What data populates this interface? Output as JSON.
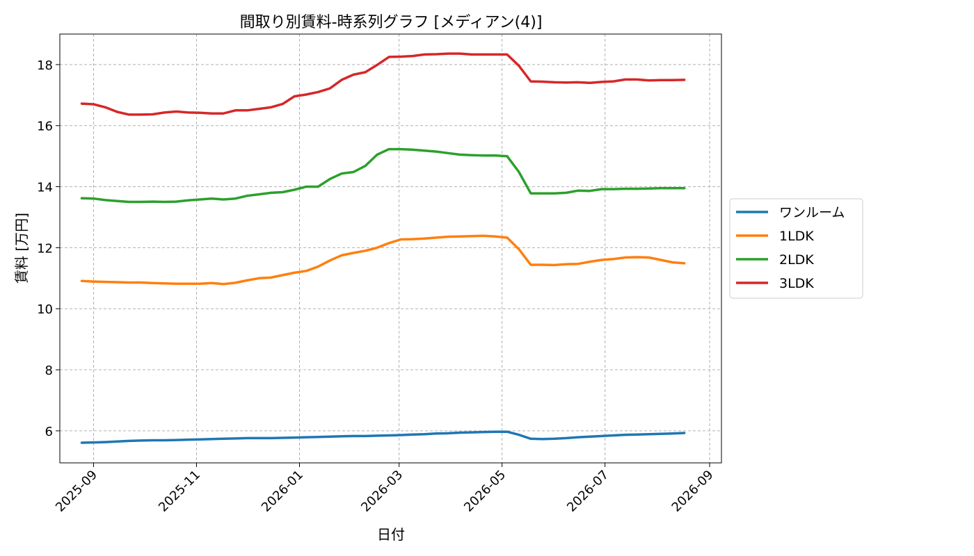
{
  "chart_data": {
    "type": "line",
    "title": "間取り別賃料-時系列グラフ [メディアン(4)]",
    "xlabel": "日付",
    "ylabel": "賃料 [万円]",
    "xlim": [
      "2025-08-12",
      "2026-09-08"
    ],
    "ylim": [
      4.95,
      19.0
    ],
    "yticks": [
      6,
      8,
      10,
      12,
      14,
      16,
      18
    ],
    "xticks": [
      "2025-09",
      "2025-11",
      "2026-01",
      "2026-03",
      "2026-05",
      "2026-07",
      "2026-09"
    ],
    "grid": true,
    "legend_position": "center-right",
    "x": [
      "2025-08-25",
      "2025-09-01",
      "2025-09-08",
      "2025-09-15",
      "2025-09-22",
      "2025-09-29",
      "2025-10-06",
      "2025-10-13",
      "2025-10-20",
      "2025-10-27",
      "2025-11-03",
      "2025-11-10",
      "2025-11-17",
      "2025-11-24",
      "2025-12-01",
      "2025-12-08",
      "2025-12-15",
      "2025-12-22",
      "2025-12-29",
      "2026-01-05",
      "2026-01-12",
      "2026-01-19",
      "2026-01-26",
      "2026-02-02",
      "2026-02-09",
      "2026-02-16",
      "2026-02-23",
      "2026-03-02",
      "2026-03-09",
      "2026-03-16",
      "2026-03-23",
      "2026-03-30",
      "2026-04-06",
      "2026-04-13",
      "2026-04-20",
      "2026-04-27",
      "2026-05-04",
      "2026-05-11",
      "2026-05-18",
      "2026-05-25",
      "2026-06-01",
      "2026-06-08",
      "2026-06-15",
      "2026-06-22",
      "2026-06-29",
      "2026-07-06",
      "2026-07-13",
      "2026-07-20",
      "2026-07-27",
      "2026-08-03",
      "2026-08-10",
      "2026-08-17"
    ],
    "series": [
      {
        "name": "ワンルーム",
        "color": "#1f77b4",
        "values": [
          5.61,
          5.62,
          5.63,
          5.65,
          5.67,
          5.68,
          5.69,
          5.69,
          5.7,
          5.71,
          5.72,
          5.73,
          5.74,
          5.75,
          5.76,
          5.76,
          5.76,
          5.77,
          5.78,
          5.79,
          5.8,
          5.81,
          5.82,
          5.83,
          5.83,
          5.84,
          5.85,
          5.86,
          5.88,
          5.89,
          5.91,
          5.92,
          5.94,
          5.95,
          5.96,
          5.97,
          5.97,
          5.87,
          5.74,
          5.73,
          5.74,
          5.76,
          5.79,
          5.81,
          5.83,
          5.85,
          5.87,
          5.88,
          5.89,
          5.9,
          5.91,
          5.93
        ]
      },
      {
        "name": "1LDK",
        "color": "#ff7f0e",
        "values": [
          10.91,
          10.89,
          10.88,
          10.87,
          10.86,
          10.86,
          10.84,
          10.83,
          10.82,
          10.82,
          10.82,
          10.84,
          10.81,
          10.85,
          10.93,
          11.0,
          11.02,
          11.1,
          11.18,
          11.24,
          11.38,
          11.58,
          11.75,
          11.83,
          11.9,
          12.0,
          12.15,
          12.27,
          12.28,
          12.3,
          12.33,
          12.36,
          12.37,
          12.38,
          12.39,
          12.37,
          12.33,
          11.95,
          11.44,
          11.44,
          11.43,
          11.46,
          11.47,
          11.54,
          11.6,
          11.63,
          11.68,
          11.69,
          11.68,
          11.6,
          11.52,
          11.49
        ]
      },
      {
        "name": "2LDK",
        "color": "#2ca02c",
        "values": [
          13.62,
          13.61,
          13.56,
          13.53,
          13.5,
          13.5,
          13.51,
          13.5,
          13.51,
          13.55,
          13.58,
          13.61,
          13.58,
          13.61,
          13.7,
          13.75,
          13.8,
          13.82,
          13.9,
          14.0,
          14.0,
          14.25,
          14.43,
          14.48,
          14.68,
          15.05,
          15.23,
          15.23,
          15.21,
          15.18,
          15.15,
          15.1,
          15.05,
          15.03,
          15.02,
          15.02,
          15.0,
          14.48,
          13.78,
          13.78,
          13.78,
          13.8,
          13.87,
          13.86,
          13.92,
          13.92,
          13.93,
          13.93,
          13.94,
          13.95,
          13.95,
          13.95
        ]
      },
      {
        "name": "3LDK",
        "color": "#d62728",
        "values": [
          16.72,
          16.7,
          16.6,
          16.45,
          16.36,
          16.36,
          16.37,
          16.43,
          16.46,
          16.43,
          16.42,
          16.4,
          16.4,
          16.5,
          16.5,
          16.55,
          16.6,
          16.71,
          16.96,
          17.02,
          17.1,
          17.22,
          17.5,
          17.67,
          17.75,
          17.99,
          18.25,
          18.26,
          18.28,
          18.33,
          18.34,
          18.36,
          18.36,
          18.33,
          18.33,
          18.33,
          18.33,
          17.96,
          17.45,
          17.44,
          17.42,
          17.41,
          17.42,
          17.4,
          17.43,
          17.45,
          17.51,
          17.51,
          17.48,
          17.49,
          17.49,
          17.5
        ]
      }
    ]
  }
}
